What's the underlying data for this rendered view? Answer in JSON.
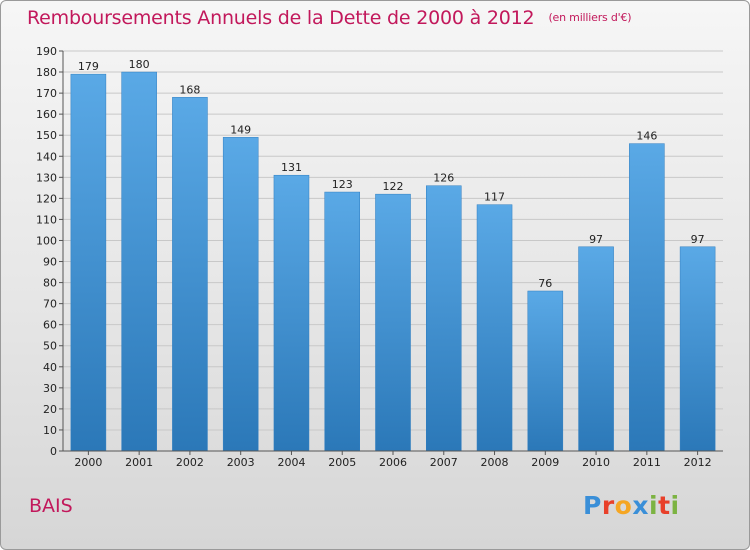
{
  "chart_data": {
    "type": "bar",
    "title": "Remboursements Annuels de la Dette de 2000 à 2012",
    "subtitle": "(en milliers d'€)",
    "categories": [
      "2000",
      "2001",
      "2002",
      "2003",
      "2004",
      "2005",
      "2006",
      "2007",
      "2008",
      "2009",
      "2010",
      "2011",
      "2012"
    ],
    "values": [
      179,
      180,
      168,
      149,
      131,
      123,
      122,
      126,
      117,
      76,
      97,
      146,
      97
    ],
    "ylim": [
      0,
      190
    ],
    "ytick_step": 10,
    "grid": true,
    "bar_color": "#5aa9e6",
    "bar_color_dark": "#2b78b8",
    "xlabel": "",
    "ylabel": ""
  },
  "footer": {
    "commune": "BAIS",
    "logo_letters": [
      "P",
      "r",
      "o",
      "x",
      "i",
      "t",
      "i"
    ],
    "logo_colors": [
      "#3a8fd8",
      "#e8402a",
      "#f5a623",
      "#3a8fd8",
      "#7cb342",
      "#e8402a",
      "#7cb342"
    ]
  },
  "colors": {
    "title": "#c2185b",
    "grid": "#c8c8c8"
  }
}
